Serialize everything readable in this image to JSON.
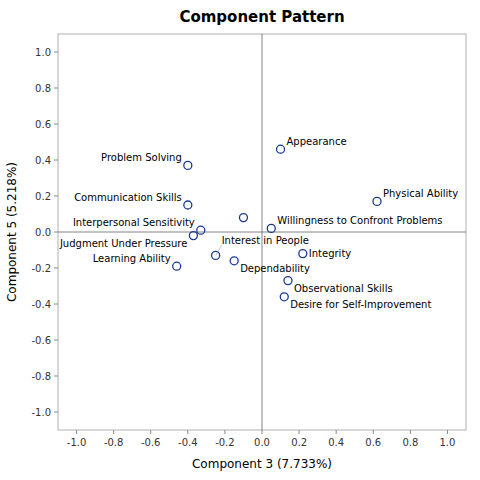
{
  "chart_data": {
    "type": "scatter",
    "title": "Component Pattern",
    "xlabel": "Component 3 (7.733%)",
    "ylabel": "Component 5 (5.218%)",
    "xlim": [
      -1.1,
      1.1
    ],
    "ylim": [
      -1.1,
      1.1
    ],
    "xticks": [
      {
        "value": -1.0,
        "label": "-1.0"
      },
      -0.8,
      -0.6,
      -0.4,
      -0.2,
      {
        "value": 0.0,
        "label": "0.0"
      },
      0.2,
      0.4,
      0.6,
      0.8,
      {
        "value": 1.0,
        "label": "1.0"
      }
    ],
    "yticks": [
      {
        "value": -1.0,
        "label": "-1.0"
      },
      -0.8,
      -0.6,
      -0.4,
      -0.2,
      {
        "value": 0.0,
        "label": "0.0"
      },
      0.2,
      0.4,
      0.6,
      0.8,
      {
        "value": 1.0,
        "label": "1.0"
      }
    ],
    "color": "#1a3a8f",
    "grid": false,
    "x": [
      -0.4,
      -0.4,
      -0.33,
      -0.37,
      -0.25,
      -0.46,
      -0.15,
      0.1,
      0.05,
      0.22,
      0.14,
      0.12,
      0.62,
      -0.1
    ],
    "values": [
      0.37,
      0.15,
      0.01,
      -0.02,
      -0.13,
      -0.19,
      -0.16,
      0.46,
      0.02,
      -0.12,
      -0.27,
      -0.36,
      0.17,
      0.08
    ],
    "labels": [
      "Problem Solving",
      "Communication Skills",
      "Interpersonal Sensitivity",
      "Judgment Under Pressure",
      "Interest in People",
      "Learning Ability",
      "Dependability",
      "Appearance",
      "Willingness to Confront Problems",
      "Integrity",
      "Observational Skills",
      "Desire for Self-Improvement",
      "Physical Ability",
      null
    ]
  }
}
